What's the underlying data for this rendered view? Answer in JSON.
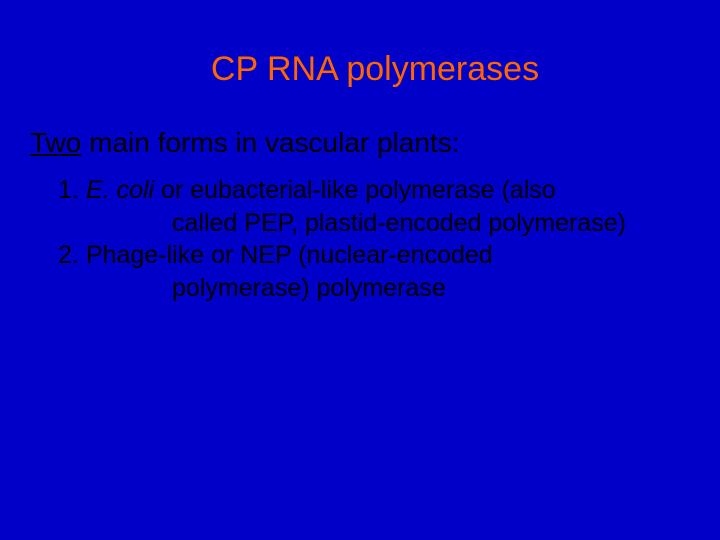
{
  "slide": {
    "background_color": "#0000c8",
    "title": {
      "text": "CP RNA polymerases",
      "color": "#ff6600",
      "fontsize": 34
    },
    "subtitle": {
      "underlined": "Two",
      "rest": " main forms in vascular plants:",
      "color": "#000000",
      "fontsize": 28
    },
    "items": [
      {
        "number": "1.",
        "italic_part": "E. coli",
        "rest_line1": " or eubacterial-like polymerase (also",
        "continuation": "called PEP, plastid-encoded polymerase)"
      },
      {
        "number": "2.",
        "italic_part": "",
        "rest_line1": "Phage-like or NEP (nuclear-encoded",
        "continuation": "polymerase) polymerase"
      }
    ],
    "body_color": "#000000",
    "body_fontsize": 25
  }
}
